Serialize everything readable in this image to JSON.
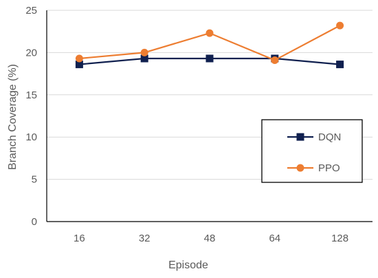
{
  "chart_data": {
    "type": "line",
    "categories": [
      "16",
      "32",
      "48",
      "64",
      "128"
    ],
    "series": [
      {
        "name": "DQN",
        "values": [
          18.6,
          19.3,
          19.3,
          19.3,
          18.6
        ],
        "color": "#10204f",
        "marker": "square"
      },
      {
        "name": "PPO",
        "values": [
          19.3,
          20.0,
          22.3,
          19.1,
          23.2
        ],
        "color": "#ed7d31",
        "marker": "circle"
      }
    ],
    "title": "",
    "xlabel": "Episode",
    "ylabel": "Branch Coverage (%)",
    "ylim": [
      0,
      25
    ],
    "yticks": [
      0,
      5,
      10,
      15,
      20,
      25
    ],
    "grid": true,
    "legend_position": "right"
  }
}
